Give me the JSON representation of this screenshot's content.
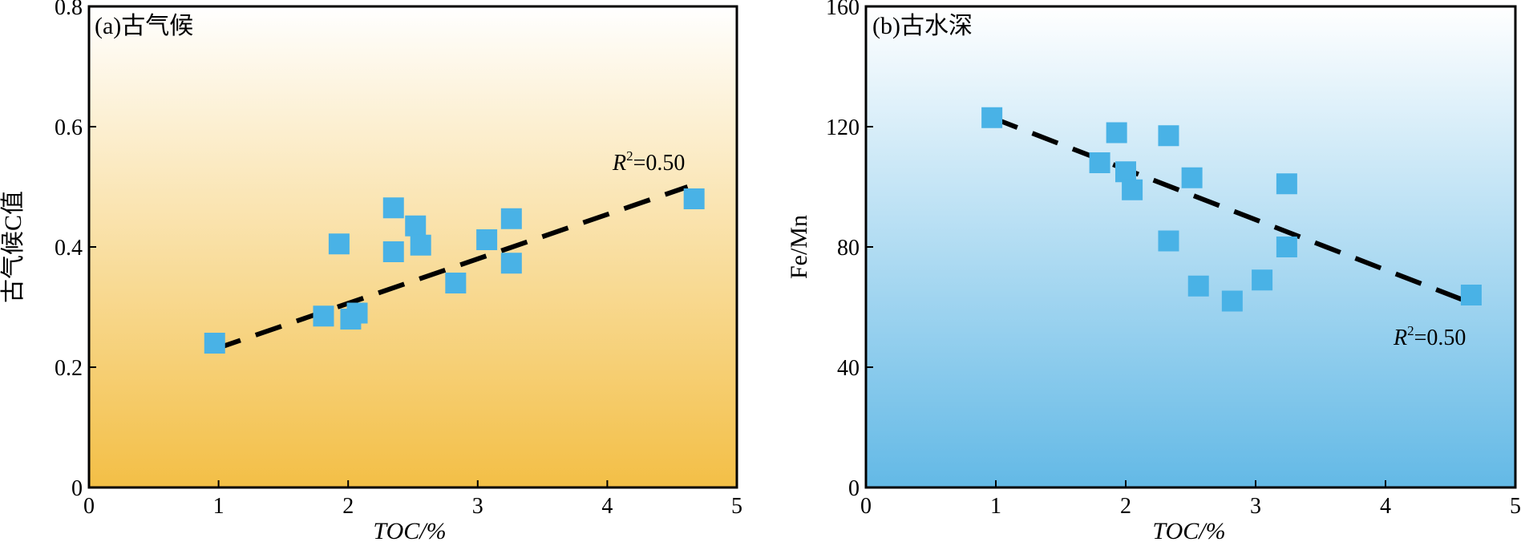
{
  "chart_data": [
    {
      "type": "scatter",
      "title": "(a)古气候",
      "xlabel": "TOC/%",
      "ylabel": "古气候C值",
      "xlim": [
        0,
        5
      ],
      "ylim": [
        0,
        0.8
      ],
      "xticks": [
        "0",
        "1",
        "2",
        "3",
        "4",
        "5"
      ],
      "yticks": [
        "0",
        "0.2",
        "0.4",
        "0.6",
        "0.8"
      ],
      "background_gradient": [
        "#ffffff",
        "#f3bf46"
      ],
      "marker_color": "#49b2e6",
      "points": [
        {
          "x": 0.97,
          "y": 0.24
        },
        {
          "x": 1.81,
          "y": 0.285
        },
        {
          "x": 1.93,
          "y": 0.405
        },
        {
          "x": 2.02,
          "y": 0.28
        },
        {
          "x": 2.07,
          "y": 0.29
        },
        {
          "x": 2.35,
          "y": 0.465
        },
        {
          "x": 2.35,
          "y": 0.392
        },
        {
          "x": 2.52,
          "y": 0.435
        },
        {
          "x": 2.56,
          "y": 0.403
        },
        {
          "x": 2.83,
          "y": 0.34
        },
        {
          "x": 3.07,
          "y": 0.412
        },
        {
          "x": 3.26,
          "y": 0.447
        },
        {
          "x": 3.26,
          "y": 0.373
        },
        {
          "x": 4.67,
          "y": 0.48
        }
      ],
      "fit_line": {
        "x": [
          0.97,
          4.62
        ],
        "y": [
          0.23,
          0.5
        ]
      },
      "r2": {
        "symbol": "R",
        "sup": "2",
        "value": "=0.50"
      }
    },
    {
      "type": "scatter",
      "title": "(b)古水深",
      "xlabel": "TOC/%",
      "ylabel": "Fe/Mn",
      "xlim": [
        0,
        5
      ],
      "ylim": [
        0,
        160
      ],
      "xticks": [
        "0",
        "1",
        "2",
        "3",
        "4",
        "5"
      ],
      "yticks": [
        "0",
        "40",
        "80",
        "120",
        "160"
      ],
      "background_gradient": [
        "#ffffff",
        "#63b9e6"
      ],
      "marker_color": "#49b2e6",
      "points": [
        {
          "x": 0.97,
          "y": 123
        },
        {
          "x": 1.8,
          "y": 108
        },
        {
          "x": 1.93,
          "y": 118
        },
        {
          "x": 2.0,
          "y": 105
        },
        {
          "x": 2.05,
          "y": 99
        },
        {
          "x": 2.33,
          "y": 117
        },
        {
          "x": 2.33,
          "y": 82
        },
        {
          "x": 2.51,
          "y": 103
        },
        {
          "x": 2.56,
          "y": 67
        },
        {
          "x": 2.82,
          "y": 62
        },
        {
          "x": 3.05,
          "y": 69
        },
        {
          "x": 3.24,
          "y": 101
        },
        {
          "x": 3.24,
          "y": 80
        },
        {
          "x": 4.66,
          "y": 64
        }
      ],
      "fit_line": {
        "x": [
          0.97,
          4.62
        ],
        "y": [
          123,
          62
        ]
      },
      "r2": {
        "symbol": "R",
        "sup": "2",
        "value": "=0.50"
      }
    }
  ]
}
